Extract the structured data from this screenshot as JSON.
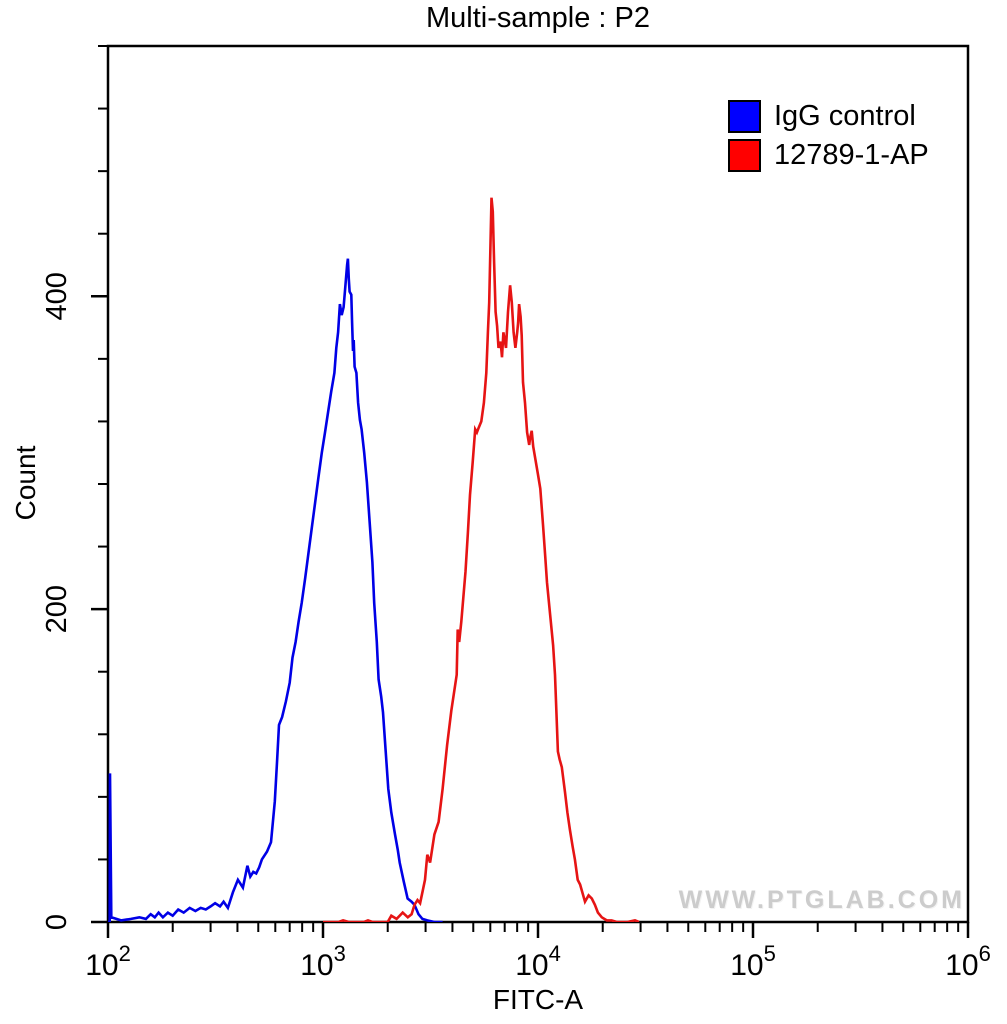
{
  "watermark": "WWW.PTGLAB.COM",
  "legend": [
    {
      "label": "IgG control",
      "color": "#0000ff"
    },
    {
      "label": "12789-1-AP",
      "color": "#ff0000"
    }
  ],
  "chart_data": {
    "type": "line",
    "title": "Multi-sample : P2",
    "xlabel": "FITC-A",
    "ylabel": "Count",
    "x_scale": "log10",
    "xlim": [
      100,
      1000000
    ],
    "ylim": [
      0,
      560
    ],
    "x_major_ticks": [
      100,
      1000,
      10000,
      100000,
      1000000
    ],
    "y_major_ticks": [
      0,
      200,
      400
    ],
    "y_minor_step": 40,
    "grid": "off",
    "legend_position": "top-right",
    "series": [
      {
        "name": "IgG control",
        "color": "#0000e6",
        "points": [
          [
            100,
            0
          ],
          [
            101.8,
            0
          ],
          [
            102.2,
            95
          ],
          [
            103.6,
            3
          ],
          [
            115,
            1
          ],
          [
            128,
            2
          ],
          [
            140,
            3
          ],
          [
            150,
            2
          ],
          [
            158,
            5
          ],
          [
            165,
            3
          ],
          [
            172,
            6
          ],
          [
            180,
            3
          ],
          [
            190,
            6
          ],
          [
            200,
            4
          ],
          [
            212,
            8
          ],
          [
            225,
            6
          ],
          [
            240,
            9
          ],
          [
            255,
            7
          ],
          [
            270,
            9
          ],
          [
            285,
            8
          ],
          [
            300,
            10
          ],
          [
            315,
            12
          ],
          [
            332,
            10
          ],
          [
            345,
            13
          ],
          [
            361,
            9
          ],
          [
            381,
            19
          ],
          [
            402,
            27
          ],
          [
            424,
            22
          ],
          [
            445,
            36
          ],
          [
            459,
            29
          ],
          [
            474,
            32
          ],
          [
            489,
            31
          ],
          [
            505,
            35
          ],
          [
            520,
            40
          ],
          [
            549,
            45
          ],
          [
            573,
            51
          ],
          [
            597,
            77
          ],
          [
            611,
            102
          ],
          [
            624,
            126
          ],
          [
            645,
            131
          ],
          [
            672,
            141
          ],
          [
            700,
            153
          ],
          [
            721,
            169
          ],
          [
            746,
            179
          ],
          [
            770,
            192
          ],
          [
            796,
            204
          ],
          [
            826,
            220
          ],
          [
            856,
            236
          ],
          [
            887,
            252
          ],
          [
            919,
            268
          ],
          [
            952,
            284
          ],
          [
            987,
            300
          ],
          [
            1022,
            313
          ],
          [
            1056,
            326
          ],
          [
            1092,
            339
          ],
          [
            1130,
            351
          ],
          [
            1153,
            367
          ],
          [
            1176,
            377
          ],
          [
            1199,
            395
          ],
          [
            1222,
            388
          ],
          [
            1247,
            393
          ],
          [
            1270,
            406
          ],
          [
            1294,
            420
          ],
          [
            1306,
            424
          ],
          [
            1318,
            411
          ],
          [
            1330,
            403
          ],
          [
            1354,
            401
          ],
          [
            1366,
            383
          ],
          [
            1379,
            365
          ],
          [
            1390,
            372
          ],
          [
            1402,
            355
          ],
          [
            1430,
            351
          ],
          [
            1457,
            332
          ],
          [
            1484,
            321
          ],
          [
            1512,
            315
          ],
          [
            1555,
            300
          ],
          [
            1600,
            281
          ],
          [
            1648,
            256
          ],
          [
            1697,
            230
          ],
          [
            1730,
            204
          ],
          [
            1780,
            179
          ],
          [
            1814,
            155
          ],
          [
            1866,
            144
          ],
          [
            1901,
            134
          ],
          [
            1957,
            109
          ],
          [
            2012,
            85
          ],
          [
            2079,
            70
          ],
          [
            2161,
            56
          ],
          [
            2228,
            46
          ],
          [
            2274,
            38
          ],
          [
            2373,
            26
          ],
          [
            2474,
            15
          ],
          [
            2582,
            13
          ],
          [
            2665,
            11
          ],
          [
            2782,
            5
          ],
          [
            2901,
            2
          ],
          [
            3057,
            1
          ],
          [
            3296,
            0
          ],
          [
            3600,
            0
          ]
        ]
      },
      {
        "name": "12789-1-AP",
        "color": "#e61414",
        "points": [
          [
            1000,
            0
          ],
          [
            1180,
            0
          ],
          [
            1240,
            1
          ],
          [
            1320,
            0
          ],
          [
            1550,
            0
          ],
          [
            1620,
            1
          ],
          [
            1700,
            0
          ],
          [
            2000,
            0
          ],
          [
            2079,
            4
          ],
          [
            2200,
            2
          ],
          [
            2349,
            6
          ],
          [
            2480,
            3
          ],
          [
            2582,
            5
          ],
          [
            2665,
            11
          ],
          [
            2750,
            14
          ],
          [
            2830,
            12
          ],
          [
            2901,
            19
          ],
          [
            2980,
            27
          ],
          [
            3057,
            43
          ],
          [
            3150,
            38
          ],
          [
            3296,
            56
          ],
          [
            3450,
            64
          ],
          [
            3600,
            85
          ],
          [
            3778,
            113
          ],
          [
            3950,
            135
          ],
          [
            4187,
            158
          ],
          [
            4230,
            187
          ],
          [
            4300,
            179
          ],
          [
            4400,
            192
          ],
          [
            4600,
            224
          ],
          [
            4720,
            249
          ],
          [
            4830,
            273
          ],
          [
            4970,
            294
          ],
          [
            5105,
            315
          ],
          [
            5200,
            313
          ],
          [
            5300,
            316
          ],
          [
            5450,
            320
          ],
          [
            5600,
            332
          ],
          [
            5750,
            351
          ],
          [
            5850,
            377
          ],
          [
            5930,
            396
          ],
          [
            6000,
            428
          ],
          [
            6080,
            463
          ],
          [
            6160,
            454
          ],
          [
            6250,
            422
          ],
          [
            6350,
            390
          ],
          [
            6450,
            381
          ],
          [
            6550,
            367
          ],
          [
            6700,
            371
          ],
          [
            6800,
            361
          ],
          [
            6900,
            377
          ],
          [
            7100,
            367
          ],
          [
            7250,
            390
          ],
          [
            7418,
            407
          ],
          [
            7550,
            396
          ],
          [
            7700,
            377
          ],
          [
            7850,
            367
          ],
          [
            8000,
            377
          ],
          [
            8080,
            383
          ],
          [
            8167,
            395
          ],
          [
            8300,
            387
          ],
          [
            8400,
            375
          ],
          [
            8514,
            345
          ],
          [
            8700,
            332
          ],
          [
            8900,
            313
          ],
          [
            9100,
            305
          ],
          [
            9180,
            309
          ],
          [
            9350,
            314
          ],
          [
            9500,
            304
          ],
          [
            10000,
            286
          ],
          [
            10250,
            277
          ],
          [
            10550,
            254
          ],
          [
            10800,
            234
          ],
          [
            11010,
            217
          ],
          [
            11400,
            196
          ],
          [
            11750,
            177
          ],
          [
            12000,
            158
          ],
          [
            12380,
            109
          ],
          [
            12600,
            104
          ],
          [
            12900,
            99
          ],
          [
            13350,
            83
          ],
          [
            13700,
            70
          ],
          [
            14080,
            59
          ],
          [
            14500,
            48
          ],
          [
            14850,
            40
          ],
          [
            15300,
            27
          ],
          [
            15700,
            24
          ],
          [
            16540,
            13
          ],
          [
            17200,
            17
          ],
          [
            17800,
            15
          ],
          [
            18400,
            11
          ],
          [
            19000,
            6
          ],
          [
            19800,
            3
          ],
          [
            20900,
            1
          ],
          [
            22000,
            1
          ],
          [
            23280,
            0
          ],
          [
            26000,
            0
          ],
          [
            28250,
            1
          ],
          [
            29500,
            0
          ]
        ]
      }
    ]
  }
}
